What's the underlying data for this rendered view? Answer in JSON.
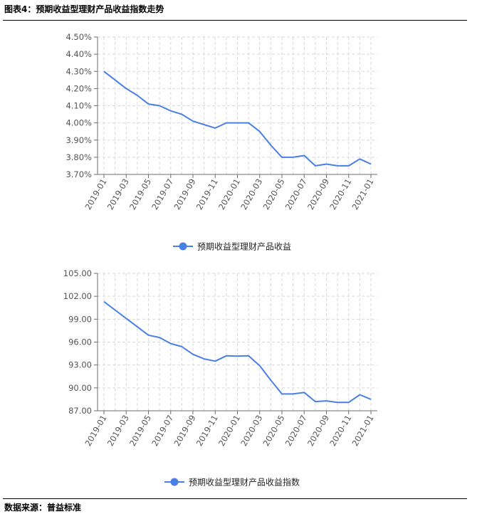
{
  "header": {
    "title": "图表4：预期收益型理财产品收益指数走势"
  },
  "footer": {
    "source": "数据来源：普益标准"
  },
  "colors": {
    "series": "#4a7fe6",
    "axis": "#6e6e6e",
    "grid": "#d9d9d9"
  },
  "chart_data": [
    {
      "type": "line",
      "title": "",
      "xlabel": "",
      "ylabel": "",
      "x": [
        "2019-01",
        "2019-02",
        "2019-03",
        "2019-04",
        "2019-05",
        "2019-06",
        "2019-07",
        "2019-08",
        "2019-09",
        "2019-10",
        "2019-11",
        "2019-12",
        "2020-01",
        "2020-02",
        "2020-03",
        "2020-04",
        "2020-05",
        "2020-06",
        "2020-07",
        "2020-08",
        "2020-09",
        "2020-10",
        "2020-11",
        "2020-12",
        "2021-01"
      ],
      "x_tick_labels": [
        "2019-01",
        "2019-03",
        "2019-05",
        "2019-07",
        "2019-09",
        "2019-11",
        "2020-01",
        "2020-03",
        "2020-05",
        "2020-07",
        "2020-09",
        "2020-11",
        "2021-01"
      ],
      "y_ticks": [
        "3.70%",
        "3.80%",
        "3.90%",
        "4.00%",
        "4.10%",
        "4.20%",
        "4.30%",
        "4.40%",
        "4.50%"
      ],
      "ylim": [
        3.7,
        4.5
      ],
      "grid": true,
      "legend_position": "bottom-center",
      "series": [
        {
          "name": "预期收益型理财产品收益",
          "values": [
            4.3,
            4.25,
            4.2,
            4.16,
            4.11,
            4.1,
            4.07,
            4.05,
            4.01,
            3.99,
            3.97,
            4.0,
            4.0,
            4.0,
            3.95,
            3.87,
            3.8,
            3.8,
            3.81,
            3.75,
            3.76,
            3.75,
            3.75,
            3.79,
            3.76
          ]
        }
      ]
    },
    {
      "type": "line",
      "title": "",
      "xlabel": "",
      "ylabel": "",
      "x": [
        "2019-01",
        "2019-02",
        "2019-03",
        "2019-04",
        "2019-05",
        "2019-06",
        "2019-07",
        "2019-08",
        "2019-09",
        "2019-10",
        "2019-11",
        "2019-12",
        "2020-01",
        "2020-02",
        "2020-03",
        "2020-04",
        "2020-05",
        "2020-06",
        "2020-07",
        "2020-08",
        "2020-09",
        "2020-10",
        "2020-11",
        "2020-12",
        "2021-01"
      ],
      "x_tick_labels": [
        "2019-01",
        "2019-03",
        "2019-05",
        "2019-07",
        "2019-09",
        "2019-11",
        "2020-01",
        "2020-03",
        "2020-05",
        "2020-07",
        "2020-09",
        "2020-11",
        "2021-01"
      ],
      "y_ticks": [
        "87.00",
        "90.00",
        "93.00",
        "96.00",
        "99.00",
        "102.00",
        "105.00"
      ],
      "ylim": [
        87,
        105
      ],
      "grid": true,
      "legend_position": "bottom-center",
      "series": [
        {
          "name": "预期收益型理财产品收益指数",
          "values": [
            101.3,
            100.2,
            99.1,
            98.0,
            96.9,
            96.6,
            95.8,
            95.4,
            94.4,
            93.8,
            93.5,
            94.2,
            94.15,
            94.2,
            92.9,
            91.0,
            89.2,
            89.2,
            89.4,
            88.2,
            88.3,
            88.1,
            88.1,
            89.1,
            88.5
          ]
        }
      ]
    }
  ]
}
